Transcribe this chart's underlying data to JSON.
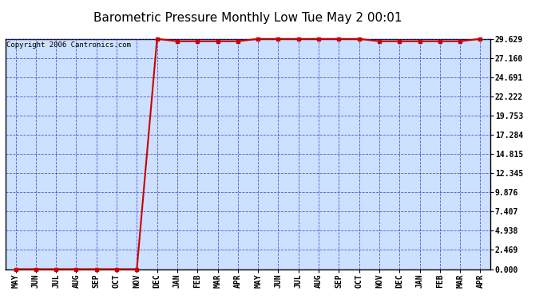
{
  "title": "Barometric Pressure Monthly Low Tue May 2 00:01",
  "copyright": "Copyright 2006 Cantronics.com",
  "x_labels": [
    "MAY",
    "JUN",
    "JUL",
    "AUG",
    "SEP",
    "OCT",
    "NOV",
    "DEC",
    "JAN",
    "FEB",
    "MAR",
    "APR",
    "MAY",
    "JUN",
    "JUL",
    "AUG",
    "SEP",
    "OCT",
    "NOV",
    "DEC",
    "JAN",
    "FEB",
    "MAR",
    "APR"
  ],
  "y_values": [
    0.0,
    0.0,
    0.0,
    0.0,
    0.0,
    0.0,
    0.0,
    29.629,
    29.321,
    29.321,
    29.321,
    29.321,
    29.629,
    29.629,
    29.629,
    29.629,
    29.629,
    29.629,
    29.321,
    29.321,
    29.321,
    29.321,
    29.321,
    29.629
  ],
  "y_ticks": [
    0.0,
    2.469,
    4.938,
    7.407,
    9.876,
    12.345,
    14.815,
    17.284,
    19.753,
    22.222,
    24.691,
    27.16,
    29.629
  ],
  "y_tick_labels": [
    "0.000",
    "2.469",
    "4.938",
    "7.407",
    "9.876",
    "12.345",
    "14.815",
    "17.284",
    "19.753",
    "22.222",
    "24.691",
    "27.160",
    "29.629"
  ],
  "ylim": [
    0.0,
    29.629
  ],
  "line_color": "#cc0000",
  "marker": "s",
  "marker_size": 2.5,
  "line_width": 1.5,
  "bg_color": "#cce0ff",
  "grid_color": "#3333cc",
  "title_fontsize": 11,
  "tick_fontsize": 7,
  "copyright_fontsize": 6.5
}
